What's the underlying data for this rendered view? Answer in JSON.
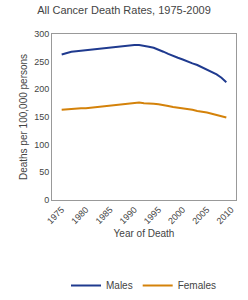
{
  "chart_data": {
    "type": "line",
    "title": "All Cancer Death Rates, 1975-2009",
    "xlabel": "Year of Death",
    "ylabel": "Deaths per 100,000 persons",
    "x": [
      1975,
      1976,
      1977,
      1978,
      1979,
      1980,
      1981,
      1982,
      1983,
      1984,
      1985,
      1986,
      1987,
      1988,
      1989,
      1990,
      1991,
      1992,
      1993,
      1994,
      1995,
      1996,
      1997,
      1998,
      1999,
      2000,
      2001,
      2002,
      2003,
      2004,
      2005,
      2006,
      2007,
      2008,
      2009
    ],
    "series": [
      {
        "name": "Males",
        "color": "#1F3A8F",
        "values": [
          263,
          266,
          268,
          269,
          270,
          271,
          272,
          273,
          273,
          274,
          275,
          276,
          277,
          278,
          279,
          280,
          280,
          279,
          277,
          275,
          272,
          268,
          264,
          260,
          257,
          254,
          250,
          247,
          244,
          240,
          236,
          231,
          227,
          221,
          213
        ]
      },
      {
        "name": "Females",
        "color": "#D4820A",
        "values": [
          163,
          164,
          165,
          165,
          166,
          166,
          167,
          168,
          169,
          170,
          171,
          172,
          173,
          174,
          175,
          176,
          176,
          175,
          175,
          174,
          173,
          172,
          170,
          168,
          167,
          166,
          164,
          163,
          161,
          160,
          158,
          156,
          154,
          151,
          149
        ]
      }
    ],
    "xlim": [
      1973,
      2011
    ],
    "xticks": [
      1975,
      1980,
      1985,
      1990,
      1995,
      2000,
      2005,
      2010
    ],
    "ylim": [
      0,
      300
    ],
    "yticks": [
      0,
      50,
      100,
      150,
      200,
      250,
      300
    ],
    "grid": false,
    "legend": "bottom"
  }
}
